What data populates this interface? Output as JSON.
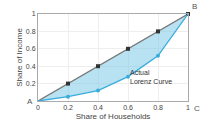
{
  "chart_data": {
    "type": "line",
    "xlabel": "Share of Households",
    "ylabel": "Share of Income",
    "xlim": [
      0,
      1
    ],
    "ylim": [
      0,
      1
    ],
    "xticks": [
      0,
      0.2,
      0.4,
      0.6,
      0.8,
      1
    ],
    "yticks": [
      0.2,
      0.4,
      0.6,
      0.8,
      1
    ],
    "grid": true,
    "series": [
      {
        "type": "line",
        "color": "#777777",
        "x": [
          0,
          1
        ],
        "values": [
          0,
          1
        ]
      },
      {
        "type": "area",
        "color": "#7DC8E8",
        "x": [
          0,
          0.2,
          0.4,
          0.6,
          0.8,
          1.0
        ],
        "values": [
          0,
          0.05,
          0.12,
          0.28,
          0.52,
          1.0
        ]
      },
      {
        "type": "scatter",
        "marker": "square",
        "color": "#333333",
        "x": [
          0.2,
          0.4,
          0.6,
          0.8,
          1.0
        ],
        "values": [
          0.2,
          0.4,
          0.6,
          0.8,
          1.0
        ]
      },
      {
        "type": "line",
        "color": "#3AACDC",
        "x": [
          0,
          0.2,
          0.4,
          0.6,
          0.8,
          1.0
        ],
        "values": [
          0,
          0.05,
          0.12,
          0.28,
          0.52,
          1.0
        ]
      },
      {
        "type": "scatter",
        "marker": "circle",
        "color": "#3AACDC",
        "x": [
          0.2,
          0.4,
          0.6,
          0.8
        ],
        "values": [
          0.05,
          0.12,
          0.28,
          0.52
        ]
      }
    ],
    "annotations": [
      "A",
      "B",
      "C",
      "Actual\nLorenz Curve"
    ]
  }
}
